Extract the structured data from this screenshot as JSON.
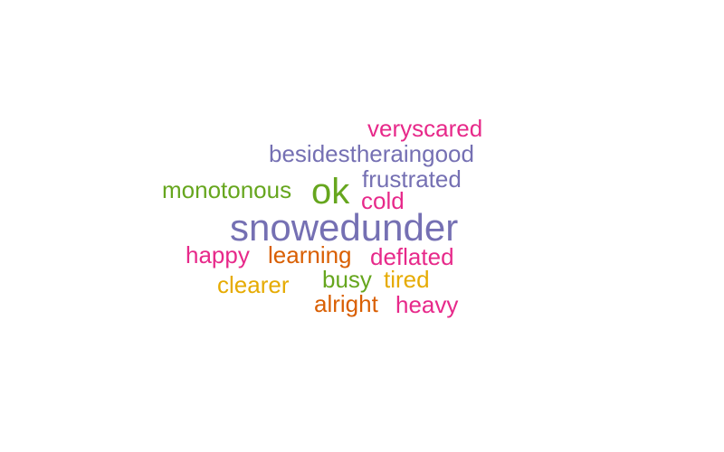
{
  "words": [
    {
      "text": "veryscared",
      "color": "#E7298A"
    },
    {
      "text": "besidestheraingood",
      "color": "#7570B3"
    },
    {
      "text": "frustrated",
      "color": "#7570B3"
    },
    {
      "text": "monotonous",
      "color": "#66A61E"
    },
    {
      "text": "ok",
      "color": "#66A61E"
    },
    {
      "text": "cold",
      "color": "#E7298A"
    },
    {
      "text": "snowedunder",
      "color": "#7570B3"
    },
    {
      "text": "happy",
      "color": "#E7298A"
    },
    {
      "text": "learning",
      "color": "#D95F02"
    },
    {
      "text": "deflated",
      "color": "#E7298A"
    },
    {
      "text": "busy",
      "color": "#66A61E"
    },
    {
      "text": "tired",
      "color": "#E6AB02"
    },
    {
      "text": "clearer",
      "color": "#E6AB02"
    },
    {
      "text": "alright",
      "color": "#D95F02"
    },
    {
      "text": "heavy",
      "color": "#E7298A"
    }
  ]
}
